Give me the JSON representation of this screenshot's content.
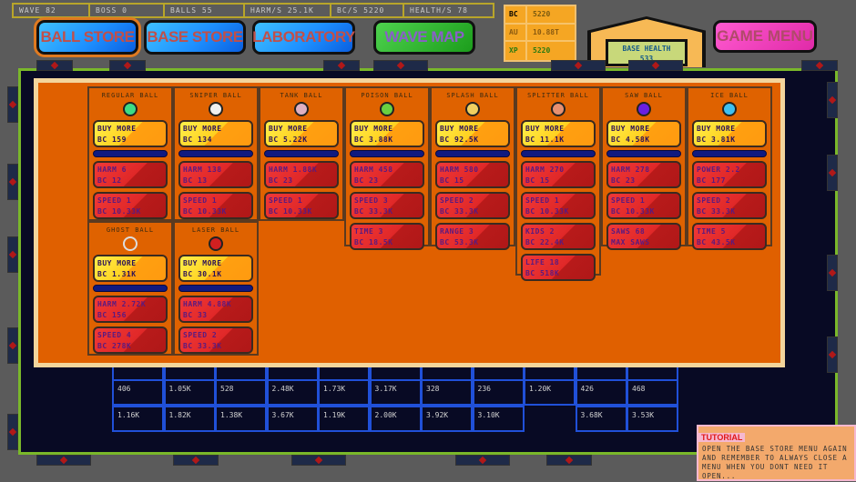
{
  "stats": [
    "WAVE 82",
    "BOSS 0",
    "BALLS 55",
    "HARM/S 25.1K",
    "BC/S 5220",
    "HEALTH/S 78"
  ],
  "nav": {
    "ball_store": "BALL STORE",
    "base_store": "BASE STORE",
    "laboratory": "LABORATORY",
    "wave_map": "WAVE MAP",
    "game_menu": "GAME MENU"
  },
  "resources": [
    {
      "label": "BC",
      "value": "5220"
    },
    {
      "label": "AU",
      "value": "10.88T"
    },
    {
      "label": "XP",
      "value": "5220"
    }
  ],
  "base": {
    "label": "BASE HEALTH",
    "value": "533"
  },
  "balls": [
    {
      "name": "REGULAR BALL",
      "icon": "green-ball-icon",
      "color": "#3ddc84",
      "buy": [
        "BUY MORE",
        "BC 159"
      ],
      "upgrades": [
        [
          "HARM 6",
          "BC 12"
        ],
        [
          "SPEED 1",
          "BC 10.33K"
        ]
      ]
    },
    {
      "name": "SNIPER BALL",
      "icon": "crosshair-ball-icon",
      "color": "#f0f0f0",
      "buy": [
        "BUY MORE",
        "BC 134"
      ],
      "upgrades": [
        [
          "HARM 138",
          "BC 13"
        ],
        [
          "SPEED 1",
          "BC 10.33K"
        ]
      ]
    },
    {
      "name": "TANK BALL",
      "icon": "tank-ball-icon",
      "color": "#e0b0c0",
      "buy": [
        "BUY MORE",
        "BC 5.22K"
      ],
      "upgrades": [
        [
          "HARM 1.88K",
          "BC 23"
        ],
        [
          "SPEED 1",
          "BC 10.33K"
        ]
      ]
    },
    {
      "name": "POISON BALL",
      "icon": "poison-ball-icon",
      "color": "#6ad040",
      "buy": [
        "BUY MORE",
        "BC 3.88K"
      ],
      "upgrades": [
        [
          "HARM 458",
          "BC 23"
        ],
        [
          "SPEED 3",
          "BC 33.3K"
        ],
        [
          "TIME 3",
          "BC 18.5K"
        ]
      ]
    },
    {
      "name": "SPLASH BALL",
      "icon": "splash-ball-icon",
      "color": "#f0d060",
      "buy": [
        "BUY MORE",
        "BC 92.5K"
      ],
      "upgrades": [
        [
          "HARM 580",
          "BC 15"
        ],
        [
          "SPEED 2",
          "BC 33.3K"
        ],
        [
          "RANGE 3",
          "BC 53.3K"
        ]
      ]
    },
    {
      "name": "SPLITTER BALL",
      "icon": "splitter-ball-icon",
      "color": "#e89070",
      "buy": [
        "BUY MORE",
        "BC 11.1K"
      ],
      "upgrades": [
        [
          "HARM 270",
          "BC 15"
        ],
        [
          "SPEED 1",
          "BC 10.33K"
        ],
        [
          "KIDS 2",
          "BC 22.4K"
        ],
        [
          "LIFE 18",
          "BC 518K"
        ]
      ]
    },
    {
      "name": "SAW BALL",
      "icon": "saw-ball-icon",
      "color": "#6a20e0",
      "buy": [
        "BUY MORE",
        "BC 4.58K"
      ],
      "upgrades": [
        [
          "HARM 278",
          "BC 23"
        ],
        [
          "SPEED 1",
          "BC 10.33K"
        ],
        [
          "SAWS 68",
          "MAX SAWS"
        ]
      ]
    },
    {
      "name": "ICE BALL",
      "icon": "ice-ball-icon",
      "color": "#40c0f0",
      "buy": [
        "BUY MORE",
        "BC 3.81K"
      ],
      "upgrades": [
        [
          "POWER 2.2",
          "BC 177"
        ],
        [
          "SPEED 2",
          "BC 33.3K"
        ],
        [
          "TIME 5",
          "BC 43.5K"
        ]
      ]
    },
    {
      "name": "GHOST BALL",
      "icon": "ghost-ball-icon",
      "color": "transparent",
      "buy": [
        "BUY MORE",
        "BC 1.31K"
      ],
      "upgrades": [
        [
          "HARM 2.72K",
          "BC 156"
        ],
        [
          "SPEED 4",
          "BC 278K"
        ]
      ]
    },
    {
      "name": "LASER BALL",
      "icon": "laser-ball-icon",
      "color": "#d02020",
      "buy": [
        "BUY MORE",
        "BC 30.1K"
      ],
      "upgrades": [
        [
          "HARM 4.88K",
          "BC 33"
        ],
        [
          "SPEED 2",
          "BC 33.3K"
        ]
      ]
    }
  ],
  "bricks": [
    [
      "406",
      "1.05K",
      "528",
      "2.48K",
      "1.73K",
      "3.17K",
      "328",
      "236",
      "1.20K",
      "426",
      "468"
    ],
    [
      "1.16K",
      "1.82K",
      "1.38K",
      "3.67K",
      "1.19K",
      "2.00K",
      "3.92K",
      "3.10K",
      "",
      "3.68K",
      "3.53K"
    ]
  ],
  "tutorial": {
    "title": "TUTORIAL",
    "text": "OPEN THE BASE STORE MENU AGAIN AND REMEMBER TO ALWAYS CLOSE A MENU WHEN YOU DONT NEED IT OPEN..."
  },
  "colors": {
    "panel": "#e06000",
    "buy": "#ffd020",
    "upgrade": "#e02828",
    "arena_border": "#7ab82a"
  }
}
